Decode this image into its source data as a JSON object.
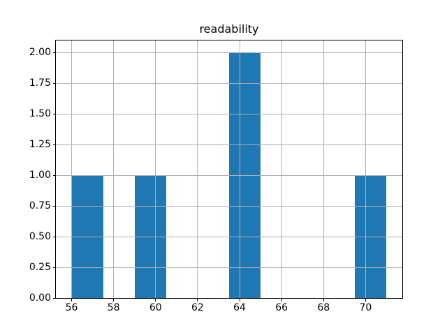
{
  "chart_data": {
    "type": "histogram",
    "title": "readability",
    "xlabel": "",
    "ylabel": "",
    "bin_edges": [
      56,
      57.5,
      59,
      60.5,
      62,
      63.5,
      65,
      66.5,
      68,
      69.5,
      71
    ],
    "counts": [
      1,
      0,
      1,
      0,
      0,
      2,
      0,
      0,
      0,
      1
    ],
    "xlim": [
      55.25,
      71.75
    ],
    "ylim": [
      0,
      2.1
    ],
    "xticks": [
      56,
      58,
      60,
      62,
      64,
      66,
      68,
      70
    ],
    "xtick_labels": [
      "56",
      "58",
      "60",
      "62",
      "64",
      "66",
      "68",
      "70"
    ],
    "yticks": [
      0,
      0.25,
      0.5,
      0.75,
      1,
      1.25,
      1.5,
      1.75,
      2
    ],
    "ytick_labels": [
      "0.00",
      "0.25",
      "0.50",
      "0.75",
      "1.00",
      "1.25",
      "1.50",
      "1.75",
      "2.00"
    ],
    "grid": true,
    "grid_on_top_of_bars": true,
    "legend": null,
    "colors": {
      "bar": "#1f77b4",
      "grid": "#b0b0b0",
      "spine": "#000000",
      "text": "#000000",
      "background": "#ffffff"
    }
  }
}
